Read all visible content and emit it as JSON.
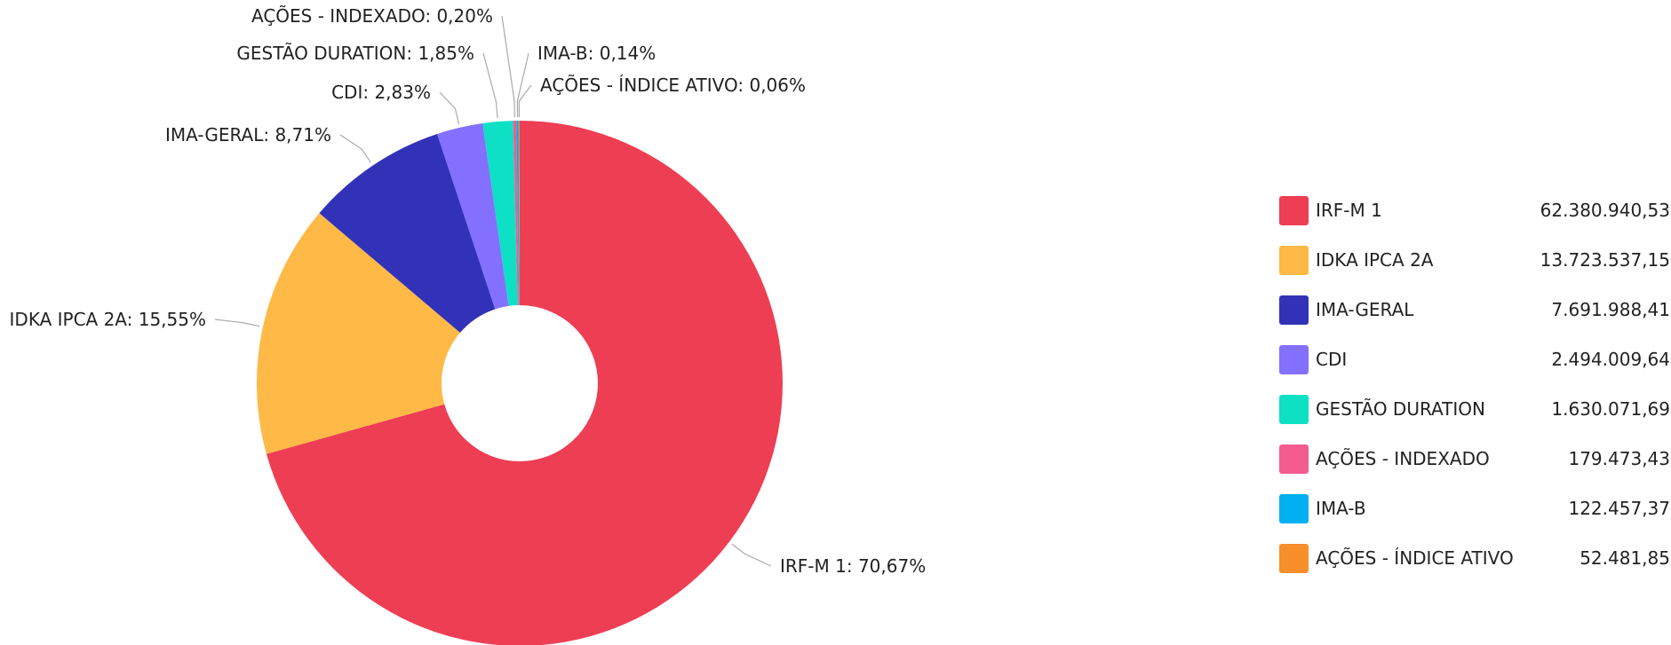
{
  "chart_data": {
    "type": "pie",
    "variant": "donut",
    "title": "",
    "legend_position": "right",
    "slices": [
      {
        "name": "IRF-M 1",
        "label": "IRF-M 1: 70,67%",
        "percent": 70.67,
        "value": "62.380.940,53",
        "color": "#EE3E54"
      },
      {
        "name": "IDKA IPCA 2A",
        "label": "IDKA IPCA 2A: 15,55%",
        "percent": 15.55,
        "value": "13.723.537,15",
        "color": "#FFB946"
      },
      {
        "name": "IMA-GERAL",
        "label": "IMA-GERAL: 8,71%",
        "percent": 8.71,
        "value": "7.691.988,41",
        "color": "#3232B8"
      },
      {
        "name": "CDI",
        "label": "CDI: 2,83%",
        "percent": 2.83,
        "value": "2.494.009,64",
        "color": "#8470FF"
      },
      {
        "name": "GESTÃO DURATION",
        "label": "GESTÃO DURATION: 1,85%",
        "percent": 1.85,
        "value": "1.630.071,69",
        "color": "#0DE0C5"
      },
      {
        "name": "AÇÕES - INDEXADO",
        "label": "AÇÕES - INDEXADO: 0,20%",
        "percent": 0.2,
        "value": "179.473,43",
        "color": "#F45C8F"
      },
      {
        "name": "IMA-B",
        "label": "IMA-B: 0,14%",
        "percent": 0.14,
        "value": "122.457,37",
        "color": "#00B0F0"
      },
      {
        "name": "AÇÕES - ÍNDICE ATIVO",
        "label": "AÇÕES - ÍNDICE ATIVO: 0,06%",
        "percent": 0.06,
        "value": "52.481,85",
        "color": "#F78F2A"
      }
    ]
  }
}
